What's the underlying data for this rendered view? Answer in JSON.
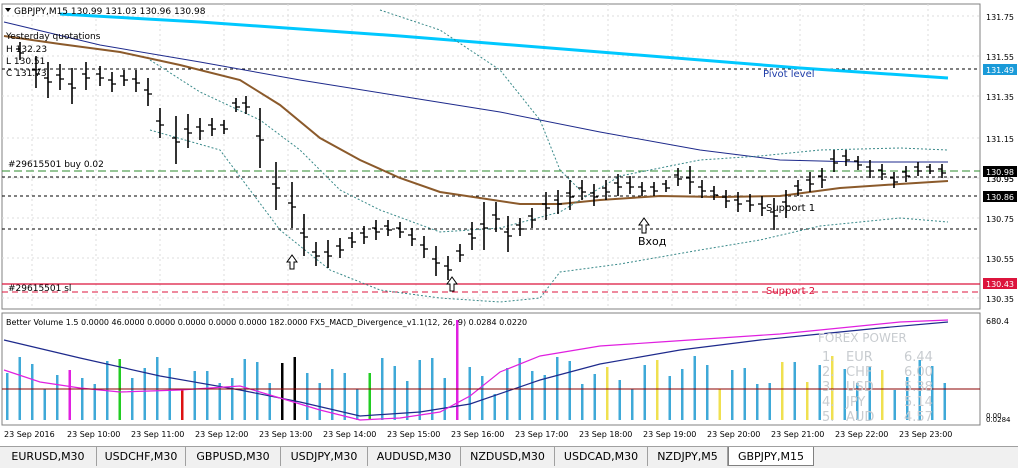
{
  "window": {
    "symbol_header": "GBPJPY,M15  130.99 131.03 130.96 130.98"
  },
  "yesterday": {
    "title": "Yesterday quotations",
    "high": "H 132.23",
    "low": "L 130.51",
    "close": "C 131.73"
  },
  "price_axis": {
    "ticks": [
      "131.75",
      "131.55",
      "131.35",
      "131.15",
      "130.95",
      "130.75",
      "130.55",
      "130.35"
    ],
    "tag_pivot": "131.49",
    "tag_current": "130.98",
    "tag_support1": "130.86",
    "tag_support2": "130.43",
    "tag_partial": "130.95"
  },
  "labels": {
    "pivot": "Pivot level",
    "support1": "Support 1",
    "support2": "Support 2",
    "entry": "Вход",
    "order_buy": "#29615501 buy 0.02",
    "order_sl": "#29615501 sl"
  },
  "indicator": {
    "header": "Better Volume 1.5 0.0000 46.0000 0.0000 0.0000 0.0000 0.0000 182.0000  FX5_MACD_Divergence_v1.1(12, 26, 9) 0.0284 0.0220",
    "axis_top": "680.4",
    "axis_bottom": "0.00",
    "axis_bottom2": "0.0284"
  },
  "forex_power": {
    "title": "FOREX POWER",
    "rows": [
      {
        "rank": "1.",
        "cur": "EUR",
        "val": "6.44"
      },
      {
        "rank": "2.",
        "cur": "CHF",
        "val": "6.00"
      },
      {
        "rank": "3.",
        "cur": "USD",
        "val": "5.38"
      },
      {
        "rank": "4.",
        "cur": "JPY",
        "val": "5.14"
      },
      {
        "rank": "5.",
        "cur": "AUD",
        "val": "4.57"
      }
    ]
  },
  "time_axis": [
    "23 Sep 2016",
    "23 Sep 10:00",
    "23 Sep 11:00",
    "23 Sep 12:00",
    "23 Sep 13:00",
    "23 Sep 14:00",
    "23 Sep 15:00",
    "23 Sep 16:00",
    "23 Sep 17:00",
    "23 Sep 18:00",
    "23 Sep 19:00",
    "23 Sep 20:00",
    "23 Sep 21:00",
    "23 Sep 22:00",
    "23 Sep 23:00"
  ],
  "tabs": [
    "EURUSD,M30",
    "USDCHF,M30",
    "GBPUSD,M30",
    "USDJPY,M30",
    "AUDUSD,M30",
    "NZDUSD,M30",
    "USDCAD,M30",
    "NZDJPY,M5",
    "GBPJPY,M15"
  ],
  "active_tab": "GBPJPY,M15",
  "colors": {
    "pivot": "#00c8ff",
    "support": "#dc143c",
    "ma_brown": "#8b5a2b",
    "ma_navy": "#1e2a8c",
    "volume_bar": "#3fa9d8",
    "macd_magenta": "#e020e0",
    "macd_navy": "#1e2a8c"
  }
}
